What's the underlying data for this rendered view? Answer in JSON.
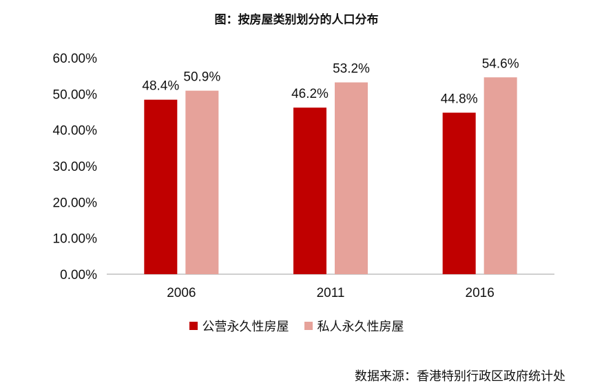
{
  "title": "图：按房屋类别划分的人口分布",
  "source": "数据来源：香港特别行政区政府统计处",
  "colors": {
    "public": "#c00000",
    "private": "#e6a29a"
  },
  "chart_data": {
    "type": "bar",
    "title": "图：按房屋类别划分的人口分布",
    "xlabel": "",
    "ylabel": "",
    "categories": [
      "2006",
      "2011",
      "2016"
    ],
    "series": [
      {
        "name": "公营永久性房屋",
        "values": [
          48.4,
          46.2,
          44.8
        ],
        "labels": [
          "48.4%",
          "46.2%",
          "44.8%"
        ]
      },
      {
        "name": "私人永久性房屋",
        "values": [
          50.9,
          53.2,
          54.6
        ],
        "labels": [
          "50.9%",
          "53.2%",
          "54.6%"
        ]
      }
    ],
    "ylim": [
      0,
      60
    ],
    "yticks": [
      "0.00%",
      "10.00%",
      "20.00%",
      "30.00%",
      "40.00%",
      "50.00%",
      "60.00%"
    ],
    "grid": false,
    "legend_position": "bottom"
  }
}
